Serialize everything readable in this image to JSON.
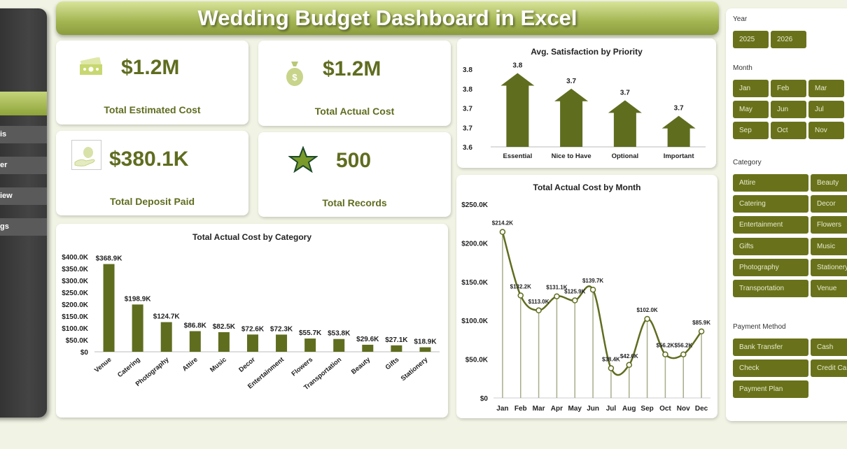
{
  "title": "Wedding Budget Dashboard in Excel",
  "sidebar": {
    "items": [
      {
        "label": ""
      },
      {
        "label": "is"
      },
      {
        "label": "er"
      },
      {
        "label": "iew"
      },
      {
        "label": "gs"
      }
    ]
  },
  "kpis": [
    {
      "value": "$1.2M",
      "label": "Total Estimated Cost",
      "icon": "cash-icon"
    },
    {
      "value": "$1.2M",
      "label": "Total Actual Cost",
      "icon": "money-bag-icon"
    },
    {
      "value": "$380.1K",
      "label": "Total Deposit Paid",
      "icon": "hand-money-icon"
    },
    {
      "value": "500",
      "label": "Total Records",
      "icon": "star-icon"
    }
  ],
  "colors": {
    "accent": "#5f6d1f",
    "button": "#69721a",
    "title_gradient": "#a3b552"
  },
  "chart_data": [
    {
      "type": "bar",
      "title": "Avg. Satisfaction by Priority",
      "categories": [
        "Essential",
        "Nice to Have",
        "Optional",
        "Important"
      ],
      "values": [
        3.79,
        3.75,
        3.72,
        3.68
      ],
      "data_labels": [
        "3.8",
        "3.7",
        "3.7",
        "3.7"
      ],
      "ylim": [
        3.6,
        3.8
      ],
      "yticks": [
        3.6,
        3.65,
        3.7,
        3.75,
        3.8
      ],
      "ytick_labels": [
        "3.6",
        "3.7",
        "3.7",
        "3.8",
        "3.8"
      ],
      "mark": "arrow",
      "grid": false
    },
    {
      "type": "bar",
      "title": "Total Actual Cost by Category",
      "categories": [
        "Venue",
        "Catering",
        "Photography",
        "Attire",
        "Music",
        "Decor",
        "Entertainment",
        "Flowers",
        "Transportation",
        "Beauty",
        "Gifts",
        "Stationery"
      ],
      "values": [
        368.9,
        198.9,
        124.7,
        86.8,
        82.5,
        72.6,
        72.3,
        55.7,
        53.8,
        29.6,
        27.1,
        18.9
      ],
      "data_labels": [
        "$368.9K",
        "$198.9K",
        "$124.7K",
        "$86.8K",
        "$82.5K",
        "$72.6K",
        "$72.3K",
        "$55.7K",
        "$53.8K",
        "$29.6K",
        "$27.1K",
        "$18.9K"
      ],
      "ylim": [
        0,
        400
      ],
      "yticks": [
        0,
        50,
        100,
        150,
        200,
        250,
        300,
        350,
        400
      ],
      "ytick_labels": [
        "$0",
        "$50.0K",
        "$100.0K",
        "$150.0K",
        "$200.0K",
        "$250.0K",
        "$300.0K",
        "$350.0K",
        "$400.0K"
      ],
      "grid": false
    },
    {
      "type": "line",
      "title": "Total Actual Cost by Month",
      "categories": [
        "Jan",
        "Feb",
        "Mar",
        "Apr",
        "May",
        "Jun",
        "Jul",
        "Aug",
        "Sep",
        "Oct",
        "Nov",
        "Dec"
      ],
      "values": [
        214.2,
        132.2,
        113.0,
        131.1,
        125.9,
        139.7,
        38.4,
        42.6,
        102.0,
        56.2,
        56.2,
        85.9
      ],
      "data_labels": [
        "$214.2K",
        "$132.2K",
        "$113.0K",
        "$131.1K",
        "$125.9K",
        "$139.7K",
        "$38.4K",
        "$42.6K",
        "$102.0K",
        "$56.2K",
        "$56.2K",
        "$85.9K"
      ],
      "ylim": [
        0,
        250
      ],
      "yticks": [
        0,
        50,
        100,
        150,
        200,
        250
      ],
      "ytick_labels": [
        "$0",
        "$50.0K",
        "$100.0K",
        "$150.0K",
        "$200.0K",
        "$250.0K"
      ],
      "smooth": true,
      "drop_lines": true,
      "grid": false
    }
  ],
  "slicers": {
    "year": {
      "title": "Year",
      "options": [
        "2025",
        "2026"
      ]
    },
    "month": {
      "title": "Month",
      "options": [
        "Jan",
        "Feb",
        "Mar",
        "May",
        "Jun",
        "Jul",
        "Sep",
        "Oct",
        "Nov"
      ]
    },
    "category": {
      "title": "Category",
      "options": [
        "Attire",
        "Beauty",
        "Catering",
        "Decor",
        "Entertainment",
        "Flowers",
        "Gifts",
        "Music",
        "Photography",
        "Stationery",
        "Transportation",
        "Venue"
      ]
    },
    "payment": {
      "title": "Payment Method",
      "options": [
        "Bank Transfer",
        "Cash",
        "Check",
        "Credit Card",
        "Payment Plan"
      ]
    }
  }
}
